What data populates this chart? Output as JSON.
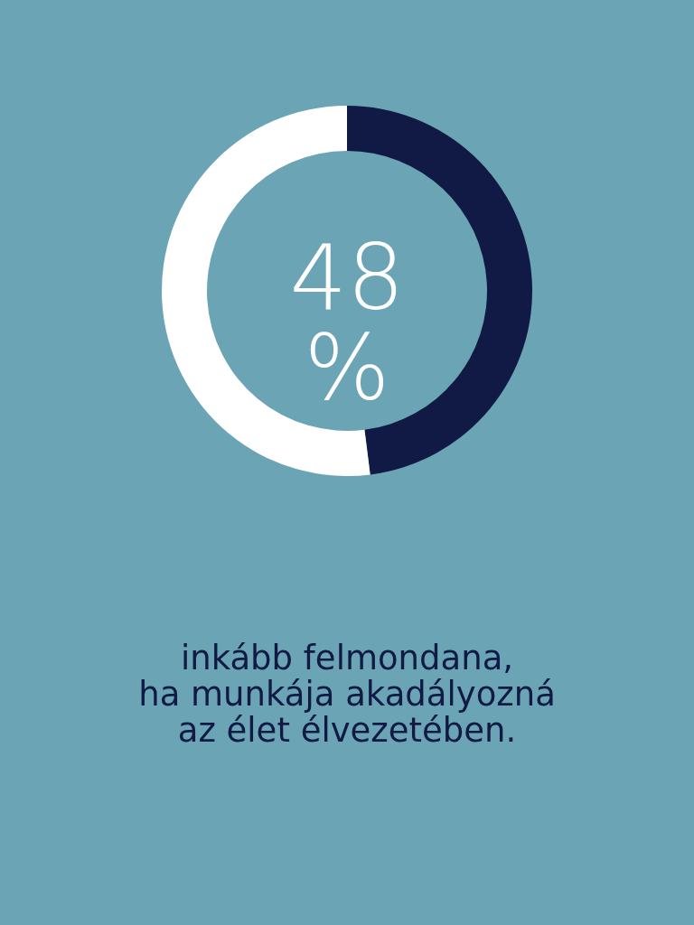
{
  "chart_data": {
    "type": "donut",
    "categories": [
      null,
      null
    ],
    "values": [
      48,
      52
    ],
    "colors": [
      "#101a44",
      "#ffffff"
    ],
    "value_labels": [
      "48 %",
      null
    ],
    "annotations": [
      "inkább felmondana,",
      "ha munkája akadályozná",
      "az élet élvezetében."
    ]
  }
}
